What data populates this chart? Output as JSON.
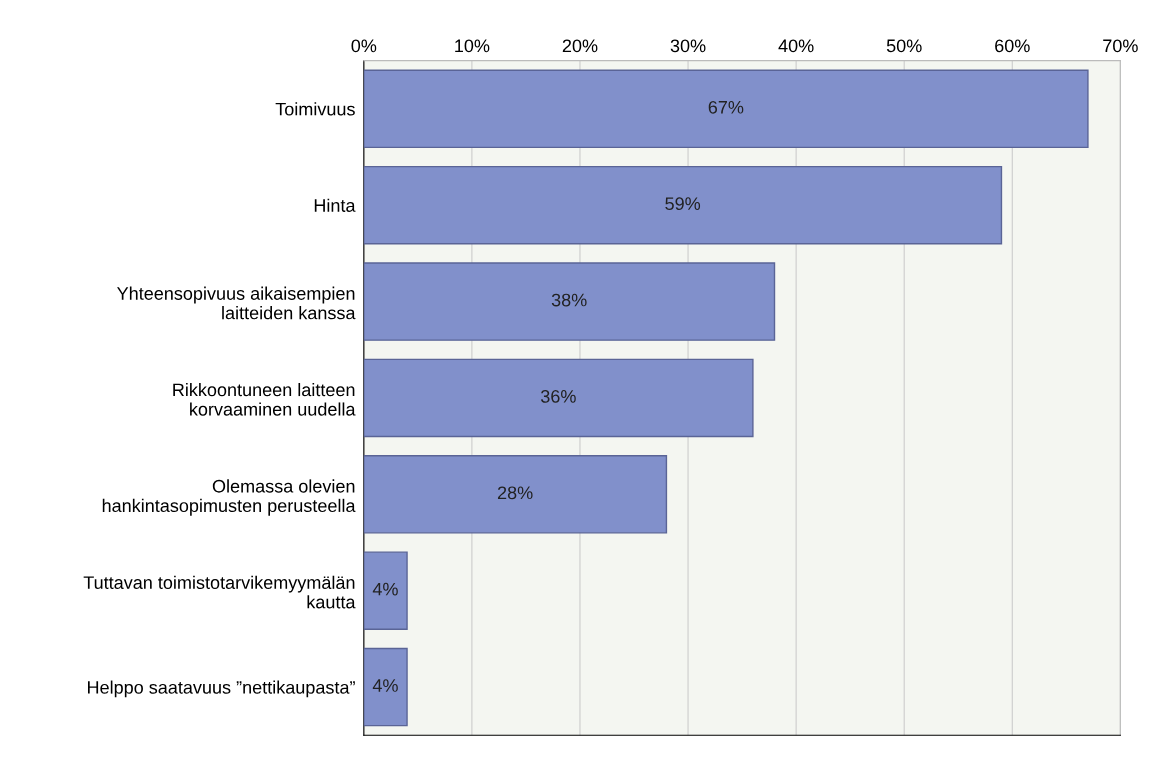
{
  "chart_data": {
    "type": "bar",
    "orientation": "horizontal",
    "categories": [
      "Toimivuus",
      "Hinta",
      "Yhteensopivuus aikaisempien\nlaitteiden kanssa",
      "Rikkoontuneen laitteen\nkorvaaminen uudella",
      "Olemassa olevien\nhankintasopimusten perusteella",
      "Tuttavan toimistotarvikemyymälän\nkautta",
      "Helppo saatavuus ”nettikaupasta”"
    ],
    "values": [
      67,
      59,
      38,
      36,
      28,
      4,
      4
    ],
    "color": "#8190cb",
    "xlim": [
      0,
      70
    ],
    "xticks": [
      {
        "value": 0,
        "label": "0%"
      },
      {
        "value": 10,
        "label": "10%"
      },
      {
        "value": 20,
        "label": "20%"
      },
      {
        "value": 30,
        "label": "30%"
      },
      {
        "value": 40,
        "label": "40%"
      },
      {
        "value": 50,
        "label": "50%"
      },
      {
        "value": 60,
        "label": "60%"
      },
      {
        "value": 70,
        "label": "70%"
      }
    ],
    "value_labels": [
      "67%",
      "59%",
      "38%",
      "36%",
      "28%",
      "4%",
      "4%"
    ],
    "grid": "x"
  }
}
